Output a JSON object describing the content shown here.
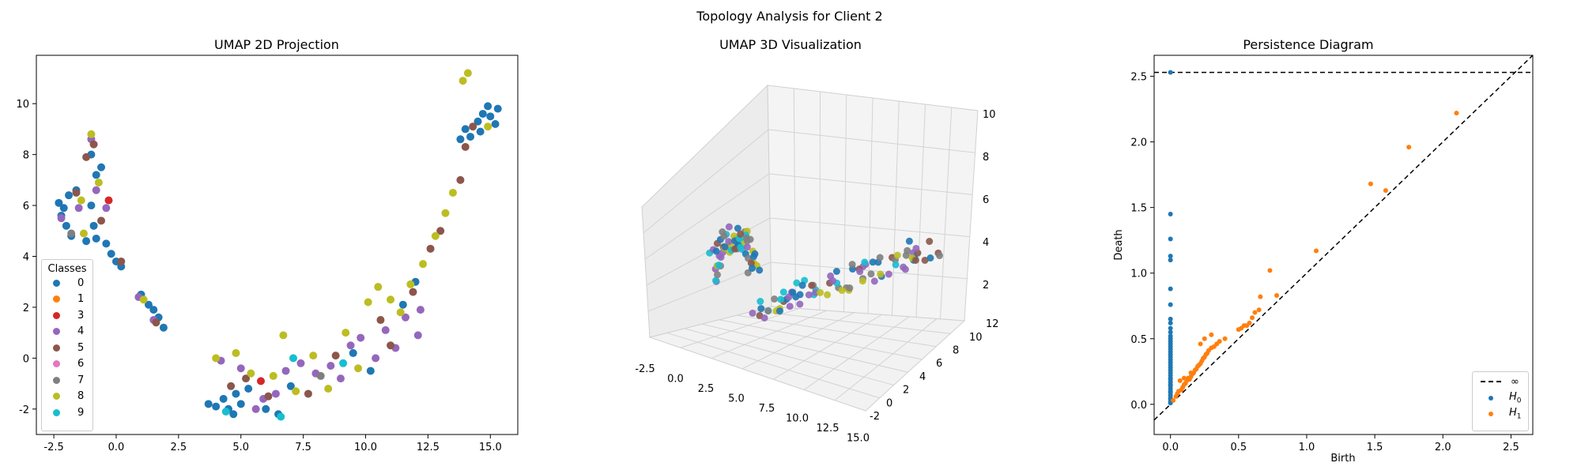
{
  "figure": {
    "suptitle": "Topology Analysis for Client 2"
  },
  "chart_data": [
    {
      "type": "scatter",
      "title": "UMAP 2D Projection",
      "xlabel": "",
      "ylabel": "",
      "xlim": [
        -3.2,
        16.1
      ],
      "ylim": [
        -3.0,
        11.9
      ],
      "xticks": [
        "-2.5",
        "0.0",
        "2.5",
        "5.0",
        "7.5",
        "10.0",
        "12.5",
        "15.0"
      ],
      "yticks": [
        "-2",
        "0",
        "2",
        "4",
        "6",
        "8",
        "10"
      ],
      "legend": {
        "title": "Classes",
        "position": "lower-left",
        "entries": [
          {
            "label": "0",
            "color": "#1f77b4"
          },
          {
            "label": "1",
            "color": "#ff7f0e"
          },
          {
            "label": "3",
            "color": "#d62728"
          },
          {
            "label": "4",
            "color": "#9467bd"
          },
          {
            "label": "5",
            "color": "#8c564b"
          },
          {
            "label": "6",
            "color": "#e377c2"
          },
          {
            "label": "7",
            "color": "#7f7f7f"
          },
          {
            "label": "8",
            "color": "#bcbd22"
          },
          {
            "label": "9",
            "color": "#17becf"
          }
        ]
      },
      "clusters": [
        {
          "class": "0",
          "points": [
            [
              -2.3,
              6.1
            ],
            [
              -2.1,
              5.9
            ],
            [
              -1.9,
              6.4
            ],
            [
              -1.6,
              6.6
            ],
            [
              -2.2,
              5.6
            ],
            [
              -2.0,
              5.2
            ],
            [
              -1.8,
              4.8
            ],
            [
              -1.2,
              4.6
            ],
            [
              -0.8,
              4.7
            ],
            [
              -0.4,
              4.5
            ],
            [
              -0.2,
              4.1
            ],
            [
              0.0,
              3.8
            ],
            [
              0.2,
              3.6
            ],
            [
              -0.9,
              5.2
            ],
            [
              -1.0,
              6.0
            ],
            [
              -0.8,
              7.2
            ],
            [
              -1.0,
              8.0
            ],
            [
              -0.6,
              7.5
            ],
            [
              1.0,
              2.5
            ],
            [
              1.3,
              2.1
            ],
            [
              1.5,
              1.9
            ],
            [
              1.7,
              1.6
            ],
            [
              1.9,
              1.2
            ],
            [
              3.7,
              -1.8
            ],
            [
              4.0,
              -1.9
            ],
            [
              4.3,
              -1.6
            ],
            [
              4.5,
              -2.0
            ],
            [
              4.8,
              -1.4
            ],
            [
              5.0,
              -1.8
            ],
            [
              4.7,
              -2.2
            ],
            [
              5.3,
              -1.2
            ],
            [
              6.0,
              -2.0
            ],
            [
              6.5,
              -2.2
            ],
            [
              7.0,
              -1.1
            ],
            [
              9.5,
              0.2
            ],
            [
              10.2,
              -0.5
            ],
            [
              11.5,
              2.1
            ],
            [
              12.0,
              3.0
            ],
            [
              13.8,
              8.6
            ],
            [
              14.0,
              9.0
            ],
            [
              14.2,
              8.7
            ],
            [
              14.5,
              9.3
            ],
            [
              14.7,
              9.6
            ],
            [
              14.9,
              9.9
            ],
            [
              15.0,
              9.5
            ],
            [
              15.2,
              9.2
            ],
            [
              15.3,
              9.8
            ],
            [
              14.6,
              8.9
            ]
          ]
        },
        {
          "class": "4",
          "points": [
            [
              -2.2,
              5.5
            ],
            [
              -1.5,
              5.9
            ],
            [
              -1.0,
              8.6
            ],
            [
              -0.8,
              6.6
            ],
            [
              -0.4,
              5.9
            ],
            [
              0.9,
              2.4
            ],
            [
              1.5,
              1.5
            ],
            [
              4.2,
              -0.1
            ],
            [
              5.0,
              -0.4
            ],
            [
              5.6,
              -2.0
            ],
            [
              5.9,
              -1.6
            ],
            [
              6.4,
              -1.4
            ],
            [
              6.8,
              -0.5
            ],
            [
              7.4,
              -0.2
            ],
            [
              8.0,
              -0.6
            ],
            [
              8.6,
              -0.3
            ],
            [
              9.0,
              -0.8
            ],
            [
              9.4,
              0.5
            ],
            [
              9.8,
              0.8
            ],
            [
              10.4,
              0.0
            ],
            [
              10.8,
              1.1
            ],
            [
              11.2,
              0.4
            ],
            [
              11.6,
              1.6
            ],
            [
              12.2,
              1.9
            ],
            [
              12.1,
              0.9
            ]
          ]
        },
        {
          "class": "5",
          "points": [
            [
              -1.6,
              6.5
            ],
            [
              -1.2,
              7.9
            ],
            [
              -0.9,
              8.4
            ],
            [
              -0.6,
              5.4
            ],
            [
              0.2,
              3.8
            ],
            [
              1.6,
              1.4
            ],
            [
              4.6,
              -1.1
            ],
            [
              5.2,
              -0.8
            ],
            [
              6.1,
              -1.5
            ],
            [
              7.7,
              -1.4
            ],
            [
              8.8,
              0.1
            ],
            [
              10.6,
              1.5
            ],
            [
              11.0,
              0.5
            ],
            [
              11.9,
              2.6
            ],
            [
              12.6,
              4.3
            ],
            [
              13.0,
              5.0
            ],
            [
              13.8,
              7.0
            ],
            [
              14.0,
              8.3
            ],
            [
              14.3,
              9.1
            ]
          ]
        },
        {
          "class": "8",
          "points": [
            [
              -1.4,
              6.2
            ],
            [
              -1.0,
              8.8
            ],
            [
              -0.7,
              6.9
            ],
            [
              -1.3,
              4.9
            ],
            [
              1.1,
              2.3
            ],
            [
              4.0,
              0.0
            ],
            [
              4.8,
              0.2
            ],
            [
              5.4,
              -0.6
            ],
            [
              6.3,
              -0.7
            ],
            [
              6.7,
              0.9
            ],
            [
              7.2,
              -1.3
            ],
            [
              7.9,
              0.1
            ],
            [
              8.5,
              -1.2
            ],
            [
              9.2,
              1.0
            ],
            [
              9.7,
              -0.4
            ],
            [
              10.1,
              2.2
            ],
            [
              10.5,
              2.8
            ],
            [
              11.0,
              2.3
            ],
            [
              11.4,
              1.8
            ],
            [
              11.8,
              2.9
            ],
            [
              12.3,
              3.7
            ],
            [
              12.8,
              4.8
            ],
            [
              13.2,
              5.7
            ],
            [
              13.5,
              6.5
            ],
            [
              13.9,
              10.9
            ],
            [
              14.1,
              11.2
            ],
            [
              14.9,
              9.1
            ]
          ]
        },
        {
          "class": "9",
          "points": [
            [
              4.4,
              -2.1
            ],
            [
              6.6,
              -2.3
            ],
            [
              7.1,
              0.0
            ],
            [
              9.1,
              -0.2
            ]
          ]
        },
        {
          "class": "3",
          "points": [
            [
              -0.3,
              6.2
            ],
            [
              5.8,
              -0.9
            ]
          ]
        },
        {
          "class": "7",
          "points": [
            [
              -1.8,
              4.9
            ],
            [
              8.2,
              -0.7
            ]
          ]
        }
      ]
    },
    {
      "type": "scatter",
      "title": "UMAP 3D Visualization",
      "xticks": [
        "-2.5",
        "0.0",
        "2.5",
        "5.0",
        "7.5",
        "10.0",
        "12.5",
        "15.0"
      ],
      "yticks": [
        "-2",
        "0",
        "2",
        "4",
        "6",
        "8",
        "10",
        "12"
      ],
      "zticks": [
        "2",
        "4",
        "6",
        "8",
        "10"
      ],
      "xlim": [
        -3,
        16
      ],
      "ylim": [
        -3,
        12
      ],
      "zlim": [
        1,
        11
      ]
    },
    {
      "type": "scatter",
      "title": "Persistence Diagram",
      "xlabel": "Birth",
      "ylabel": "Death",
      "xlim": [
        -0.12,
        2.66
      ],
      "ylim": [
        -0.23,
        2.66
      ],
      "xticks": [
        "0.0",
        "0.5",
        "1.0",
        "1.5",
        "2.0",
        "2.5"
      ],
      "yticks": [
        "0.0",
        "0.5",
        "1.0",
        "1.5",
        "2.0",
        "2.5"
      ],
      "infinity_level": 2.53,
      "legend": {
        "position": "lower-right",
        "entries": [
          {
            "label": "∞",
            "kind": "dashed-line",
            "color": "#000000"
          },
          {
            "label": "H",
            "sub": "0",
            "color": "#1f77b4"
          },
          {
            "label": "H",
            "sub": "1",
            "color": "#ff7f0e"
          }
        ]
      },
      "series": [
        {
          "name": "H0",
          "points": [
            [
              0,
              0.01
            ],
            [
              0,
              0.02
            ],
            [
              0,
              0.04
            ],
            [
              0,
              0.05
            ],
            [
              0,
              0.07
            ],
            [
              0,
              0.09
            ],
            [
              0,
              0.1
            ],
            [
              0,
              0.12
            ],
            [
              0,
              0.14
            ],
            [
              0,
              0.15
            ],
            [
              0,
              0.17
            ],
            [
              0,
              0.19
            ],
            [
              0,
              0.2
            ],
            [
              0,
              0.22
            ],
            [
              0,
              0.24
            ],
            [
              0,
              0.26
            ],
            [
              0,
              0.28
            ],
            [
              0,
              0.3
            ],
            [
              0,
              0.32
            ],
            [
              0,
              0.34
            ],
            [
              0,
              0.36
            ],
            [
              0,
              0.38
            ],
            [
              0,
              0.4
            ],
            [
              0,
              0.42
            ],
            [
              0,
              0.44
            ],
            [
              0,
              0.46
            ],
            [
              0,
              0.48
            ],
            [
              0,
              0.5
            ],
            [
              0,
              0.52
            ],
            [
              0,
              0.55
            ],
            [
              0,
              0.58
            ],
            [
              0,
              0.62
            ],
            [
              0,
              0.65
            ],
            [
              0,
              0.76
            ],
            [
              0,
              0.88
            ],
            [
              0,
              1.1
            ],
            [
              0,
              1.13
            ],
            [
              0,
              1.26
            ],
            [
              0,
              1.45
            ],
            [
              0,
              2.53
            ]
          ]
        },
        {
          "name": "H1",
          "points": [
            [
              0.02,
              0.03
            ],
            [
              0.04,
              0.06
            ],
            [
              0.05,
              0.08
            ],
            [
              0.06,
              0.1
            ],
            [
              0.08,
              0.11
            ],
            [
              0.09,
              0.13
            ],
            [
              0.1,
              0.15
            ],
            [
              0.11,
              0.16
            ],
            [
              0.12,
              0.18
            ],
            [
              0.13,
              0.2
            ],
            [
              0.14,
              0.19
            ],
            [
              0.15,
              0.21
            ],
            [
              0.16,
              0.23
            ],
            [
              0.17,
              0.24
            ],
            [
              0.18,
              0.26
            ],
            [
              0.19,
              0.27
            ],
            [
              0.2,
              0.29
            ],
            [
              0.21,
              0.3
            ],
            [
              0.22,
              0.31
            ],
            [
              0.23,
              0.33
            ],
            [
              0.24,
              0.35
            ],
            [
              0.25,
              0.36
            ],
            [
              0.26,
              0.38
            ],
            [
              0.27,
              0.39
            ],
            [
              0.28,
              0.41
            ],
            [
              0.3,
              0.43
            ],
            [
              0.32,
              0.44
            ],
            [
              0.34,
              0.46
            ],
            [
              0.36,
              0.48
            ],
            [
              0.4,
              0.5
            ],
            [
              0.22,
              0.46
            ],
            [
              0.25,
              0.5
            ],
            [
              0.3,
              0.53
            ],
            [
              0.15,
              0.24
            ],
            [
              0.1,
              0.2
            ],
            [
              0.07,
              0.18
            ],
            [
              0.5,
              0.57
            ],
            [
              0.52,
              0.58
            ],
            [
              0.54,
              0.6
            ],
            [
              0.56,
              0.6
            ],
            [
              0.58,
              0.62
            ],
            [
              0.6,
              0.66
            ],
            [
              0.62,
              0.7
            ],
            [
              0.65,
              0.72
            ],
            [
              0.66,
              0.82
            ],
            [
              0.73,
              1.02
            ],
            [
              0.78,
              0.83
            ],
            [
              1.07,
              1.17
            ],
            [
              1.47,
              1.68
            ],
            [
              1.58,
              1.63
            ],
            [
              1.75,
              1.96
            ],
            [
              2.1,
              2.22
            ]
          ]
        }
      ]
    }
  ]
}
